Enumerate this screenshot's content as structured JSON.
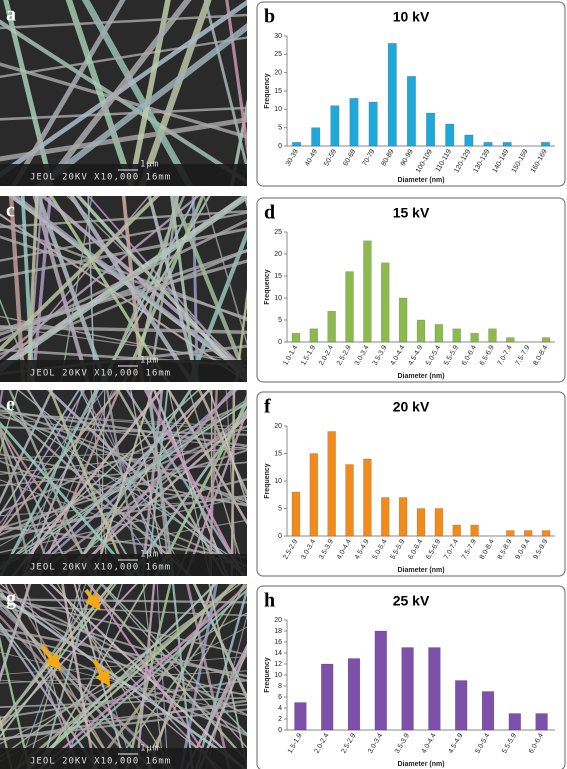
{
  "panels": [
    {
      "label": "a",
      "scale": "1μm",
      "caption": "JEOL 20KV X10,000 16mm"
    },
    {
      "label": "c",
      "scale": "1μm",
      "caption": "JEOL 20KV X10,000 16mm"
    },
    {
      "label": "e",
      "scale": "1μm",
      "caption": "JEOL 20KV X10,000 16mm"
    },
    {
      "label": "g",
      "scale": "1μm",
      "caption": "JEOL 20KV X10,000 16mm"
    }
  ],
  "chart_data": [
    {
      "type": "bar",
      "panel_label": "b",
      "title": "10 kV",
      "x_label": "Diameter (nm)",
      "y_label": "Frequency",
      "color": "#1fa8da",
      "categories": [
        "30-39",
        "40-49",
        "50-59",
        "60-69",
        "70-79",
        "80-89",
        "90-99",
        "100-109",
        "110-119",
        "120-129",
        "130-139",
        "140-149",
        "150-159",
        "160-169"
      ],
      "values": [
        1,
        5,
        11,
        13,
        12,
        28,
        19,
        9,
        6,
        3,
        1,
        1,
        0,
        1
      ],
      "ylim": [
        0,
        30
      ],
      "yticks": [
        0,
        5,
        10,
        15,
        20,
        25,
        30
      ]
    },
    {
      "type": "bar",
      "panel_label": "d",
      "title": "15 kV",
      "x_label": "Diameter (nm)",
      "y_label": "Frequency",
      "color": "#8cba4c",
      "categories": [
        "1.0-1.4",
        "1.5-1.9",
        "2.0-2.4",
        "2.5-2.9",
        "3.0-3.4",
        "3.5-3.9",
        "4.0-4.4",
        "4.5-4.9",
        "5.0-5.4",
        "5.5-5.9",
        "6.0-6.4",
        "6.5-6.9",
        "7.0-7.4",
        "7.5-7.9",
        "8.0-8.4"
      ],
      "values": [
        2,
        3,
        7,
        16,
        23,
        18,
        10,
        5,
        4,
        3,
        2,
        3,
        1,
        0,
        1
      ],
      "ylim": [
        0,
        25
      ],
      "yticks": [
        0,
        5,
        10,
        15,
        20,
        25
      ]
    },
    {
      "type": "bar",
      "panel_label": "f",
      "title": "20 kV",
      "x_label": "Diameter (nm)",
      "y_label": "Frequency",
      "color": "#f28b1c",
      "categories": [
        "2.5-2.9",
        "3.0-3.4",
        "3.5-3.9",
        "4.0-4.4",
        "4.5-4.9",
        "5.0-5.4",
        "5.5-5.9",
        "6.0-6.4",
        "6.5-6.9",
        "7.0-7.4",
        "7.5-7.9",
        "8.0-8.4",
        "8.5-8.9",
        "9.0-9.4",
        "9.5-9.9"
      ],
      "values": [
        8,
        15,
        19,
        13,
        14,
        7,
        7,
        5,
        5,
        2,
        2,
        0,
        1,
        1,
        1
      ],
      "ylim": [
        0,
        20
      ],
      "yticks": [
        0,
        5,
        10,
        15,
        20
      ]
    },
    {
      "type": "bar",
      "panel_label": "h",
      "title": "25 kV",
      "x_label": "Diameter (nm)",
      "y_label": "Frequency",
      "color": "#7d50aa",
      "categories": [
        "1.5-1.9",
        "2.0-2.4",
        "2.5-2.9",
        "3.0-3.4",
        "3.5-3.9",
        "4.0-4.4",
        "4.5-4.9",
        "5.0-5.4",
        "5.5-5.9",
        "6.0-6.4"
      ],
      "values": [
        5,
        12,
        13,
        18,
        15,
        15,
        9,
        7,
        3,
        3
      ],
      "ylim": [
        0,
        20
      ],
      "yticks": [
        0,
        2,
        4,
        6,
        8,
        10,
        12,
        14,
        16,
        18,
        20
      ]
    }
  ]
}
